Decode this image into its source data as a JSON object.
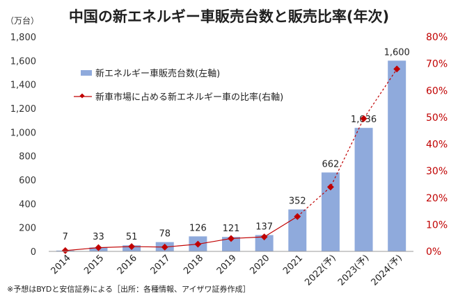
{
  "chart_data": {
    "type": "bar",
    "title": "中国の新エネルギー車販売台数と販売比率(年次)",
    "unit_label": "（万台）",
    "categories": [
      "2014",
      "2015",
      "2016",
      "2017",
      "2018",
      "2019",
      "2020",
      "2021",
      "2022(予)",
      "2023(予)",
      "2024(予)"
    ],
    "series": [
      {
        "name": "新エネルギー車販売台数(左軸)",
        "type": "bar",
        "axis": "left",
        "values": [
          7,
          33,
          51,
          78,
          126,
          121,
          137,
          352,
          662,
          1036,
          1600
        ],
        "labels": [
          "7",
          "33",
          "51",
          "78",
          "126",
          "121",
          "137",
          "352",
          "662",
          "1,036",
          "1,600"
        ]
      },
      {
        "name": "新車市場に占める新エネルギー車の比率(右軸)",
        "type": "line",
        "axis": "right",
        "values": [
          0.3,
          1.4,
          1.8,
          1.6,
          2.7,
          4.8,
          5.4,
          13.0,
          24.0,
          49.5,
          68.0
        ]
      }
    ],
    "y_left": {
      "ylim": [
        0,
        1800
      ],
      "ticks": [
        "0",
        "200",
        "400",
        "600",
        "800",
        "1,000",
        "1,200",
        "1,400",
        "1,600",
        "1,800"
      ]
    },
    "y_right": {
      "ylim": [
        0,
        80
      ],
      "ticks": [
        "0%",
        "10%",
        "20%",
        "30%",
        "40%",
        "50%",
        "60%",
        "70%",
        "80%"
      ]
    },
    "grid": false,
    "legend_position": "top-left",
    "colors": {
      "bar": "#8faadc",
      "line": "#c00000",
      "right_axis_text": "#c00000"
    }
  },
  "source_note": "※予想はBYDと安信証券による［出所：各種情報、アイザワ証券作成］"
}
